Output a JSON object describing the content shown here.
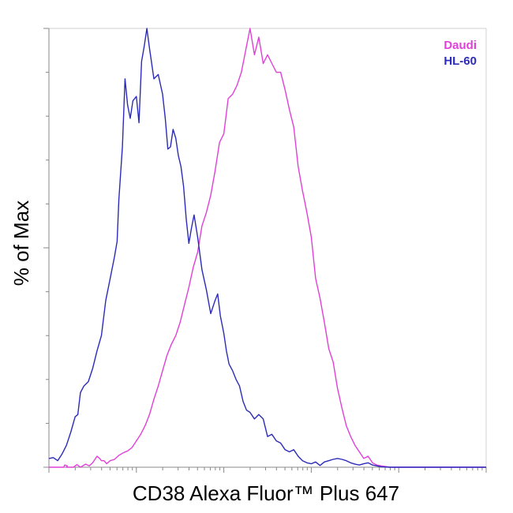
{
  "chart_data": {
    "type": "line",
    "title": "",
    "xlabel": "CD38 Alexa Fluor™ Plus 647",
    "ylabel": "% of Max",
    "x_scale": "log",
    "ylim": [
      0,
      100
    ],
    "grid": false,
    "legend_position": "top-right",
    "series": [
      {
        "name": "Daudi",
        "color": "#E040D8",
        "points": [
          [
            0,
            0
          ],
          [
            0.17,
            0
          ],
          [
            0.18,
            0.5
          ],
          [
            0.21,
            0.3
          ],
          [
            0.2,
            0
          ],
          [
            0.28,
            0
          ],
          [
            0.32,
            0.6
          ],
          [
            0.36,
            0
          ],
          [
            0.42,
            0.7
          ],
          [
            0.46,
            0.3
          ],
          [
            0.5,
            1.0
          ],
          [
            0.55,
            2.5
          ],
          [
            0.58,
            2.0
          ],
          [
            0.6,
            1.5
          ],
          [
            0.63,
            1.5
          ],
          [
            0.66,
            0.8
          ],
          [
            0.7,
            1.5
          ],
          [
            0.75,
            1.8
          ],
          [
            0.8,
            2.7
          ],
          [
            0.85,
            3.3
          ],
          [
            0.9,
            3.7
          ],
          [
            0.95,
            4.5
          ],
          [
            1.0,
            6.0
          ],
          [
            1.05,
            7.5
          ],
          [
            1.1,
            9.5
          ],
          [
            1.15,
            12.0
          ],
          [
            1.2,
            15.5
          ],
          [
            1.25,
            18.5
          ],
          [
            1.3,
            22.0
          ],
          [
            1.35,
            25.5
          ],
          [
            1.4,
            28.0
          ],
          [
            1.45,
            30.0
          ],
          [
            1.5,
            33.0
          ],
          [
            1.55,
            37.0
          ],
          [
            1.6,
            41.0
          ],
          [
            1.65,
            45.5
          ],
          [
            1.7,
            49.0
          ],
          [
            1.75,
            55.0
          ],
          [
            1.8,
            58.0
          ],
          [
            1.85,
            62.0
          ],
          [
            1.9,
            67.5
          ],
          [
            1.95,
            74.0
          ],
          [
            2.0,
            76.0
          ],
          [
            2.05,
            84.0
          ],
          [
            2.1,
            85.0
          ],
          [
            2.15,
            87.0
          ],
          [
            2.2,
            90.0
          ],
          [
            2.25,
            95.0
          ],
          [
            2.3,
            100.0
          ],
          [
            2.35,
            94.0
          ],
          [
            2.4,
            98.0
          ],
          [
            2.45,
            92.0
          ],
          [
            2.5,
            94.0
          ],
          [
            2.55,
            92.0
          ],
          [
            2.6,
            90.0
          ],
          [
            2.65,
            90.0
          ],
          [
            2.7,
            86.0
          ],
          [
            2.75,
            81.5
          ],
          [
            2.8,
            77.5
          ],
          [
            2.85,
            68.5
          ],
          [
            2.9,
            63.0
          ],
          [
            2.95,
            58.0
          ],
          [
            3.0,
            52.5
          ],
          [
            3.05,
            43.0
          ],
          [
            3.1,
            38.5
          ],
          [
            3.15,
            33.0
          ],
          [
            3.2,
            27.0
          ],
          [
            3.25,
            24.0
          ],
          [
            3.3,
            18.0
          ],
          [
            3.35,
            13.5
          ],
          [
            3.4,
            9.5
          ],
          [
            3.45,
            7.0
          ],
          [
            3.5,
            5.0
          ],
          [
            3.55,
            3.5
          ],
          [
            3.6,
            2.0
          ],
          [
            3.65,
            2.5
          ],
          [
            3.7,
            1.0
          ],
          [
            3.75,
            0.5
          ],
          [
            3.8,
            0.3
          ],
          [
            3.9,
            0
          ],
          [
            4.0,
            0
          ],
          [
            4.5,
            0
          ],
          [
            5.0,
            0
          ]
        ]
      },
      {
        "name": "HL-60",
        "color": "#2B2BB8",
        "points": [
          [
            0,
            2.0
          ],
          [
            0.05,
            2.2
          ],
          [
            0.1,
            1.5
          ],
          [
            0.15,
            3.0
          ],
          [
            0.2,
            5.0
          ],
          [
            0.25,
            8.0
          ],
          [
            0.3,
            11.5
          ],
          [
            0.33,
            12.0
          ],
          [
            0.36,
            17.0
          ],
          [
            0.4,
            18.5
          ],
          [
            0.45,
            19.5
          ],
          [
            0.5,
            22.5
          ],
          [
            0.55,
            26.5
          ],
          [
            0.6,
            30.0
          ],
          [
            0.65,
            38.0
          ],
          [
            0.7,
            43.0
          ],
          [
            0.75,
            48.0
          ],
          [
            0.78,
            51.5
          ],
          [
            0.8,
            61.0
          ],
          [
            0.84,
            73.0
          ],
          [
            0.87,
            88.5
          ],
          [
            0.9,
            82.5
          ],
          [
            0.93,
            79.5
          ],
          [
            0.96,
            83.5
          ],
          [
            1.0,
            84.5
          ],
          [
            1.03,
            78.5
          ],
          [
            1.06,
            92.5
          ],
          [
            1.09,
            96.0
          ],
          [
            1.12,
            100.0
          ],
          [
            1.15,
            95.5
          ],
          [
            1.2,
            88.5
          ],
          [
            1.25,
            89.5
          ],
          [
            1.3,
            85.0
          ],
          [
            1.33,
            79.5
          ],
          [
            1.36,
            72.5
          ],
          [
            1.39,
            73.0
          ],
          [
            1.42,
            77.0
          ],
          [
            1.45,
            75.0
          ],
          [
            1.48,
            71.0
          ],
          [
            1.51,
            68.5
          ],
          [
            1.54,
            64.0
          ],
          [
            1.57,
            56.5
          ],
          [
            1.6,
            51.0
          ],
          [
            1.63,
            54.5
          ],
          [
            1.66,
            57.5
          ],
          [
            1.7,
            52.5
          ],
          [
            1.75,
            45.0
          ],
          [
            1.8,
            40.5
          ],
          [
            1.85,
            35.0
          ],
          [
            1.9,
            38.0
          ],
          [
            1.93,
            39.5
          ],
          [
            1.96,
            34.5
          ],
          [
            2.0,
            30.5
          ],
          [
            2.03,
            26.5
          ],
          [
            2.06,
            23.5
          ],
          [
            2.1,
            22.0
          ],
          [
            2.14,
            20.0
          ],
          [
            2.18,
            18.5
          ],
          [
            2.22,
            15.0
          ],
          [
            2.26,
            13.0
          ],
          [
            2.3,
            12.5
          ],
          [
            2.35,
            11.0
          ],
          [
            2.4,
            12.0
          ],
          [
            2.45,
            11.0
          ],
          [
            2.5,
            7.0
          ],
          [
            2.55,
            7.5
          ],
          [
            2.6,
            6.0
          ],
          [
            2.65,
            5.5
          ],
          [
            2.7,
            4.0
          ],
          [
            2.75,
            3.5
          ],
          [
            2.8,
            4.0
          ],
          [
            2.85,
            2.5
          ],
          [
            2.9,
            1.5
          ],
          [
            2.95,
            1.0
          ],
          [
            3.0,
            0.8
          ],
          [
            3.05,
            1.2
          ],
          [
            3.1,
            0.4
          ],
          [
            3.15,
            1.2
          ],
          [
            3.2,
            1.5
          ],
          [
            3.25,
            1.8
          ],
          [
            3.3,
            2.0
          ],
          [
            3.35,
            1.8
          ],
          [
            3.4,
            1.5
          ],
          [
            3.45,
            1.0
          ],
          [
            3.5,
            0.7
          ],
          [
            3.55,
            0.5
          ],
          [
            3.6,
            0.8
          ],
          [
            3.65,
            1.0
          ],
          [
            3.7,
            0.5
          ],
          [
            3.75,
            0.3
          ],
          [
            3.8,
            0.1
          ],
          [
            3.9,
            0
          ],
          [
            4.0,
            0
          ],
          [
            4.5,
            0
          ],
          [
            5.0,
            0
          ]
        ]
      }
    ],
    "x_range_units": [
      0,
      5
    ],
    "decades": [
      0,
      1,
      2,
      3,
      4,
      5
    ]
  }
}
